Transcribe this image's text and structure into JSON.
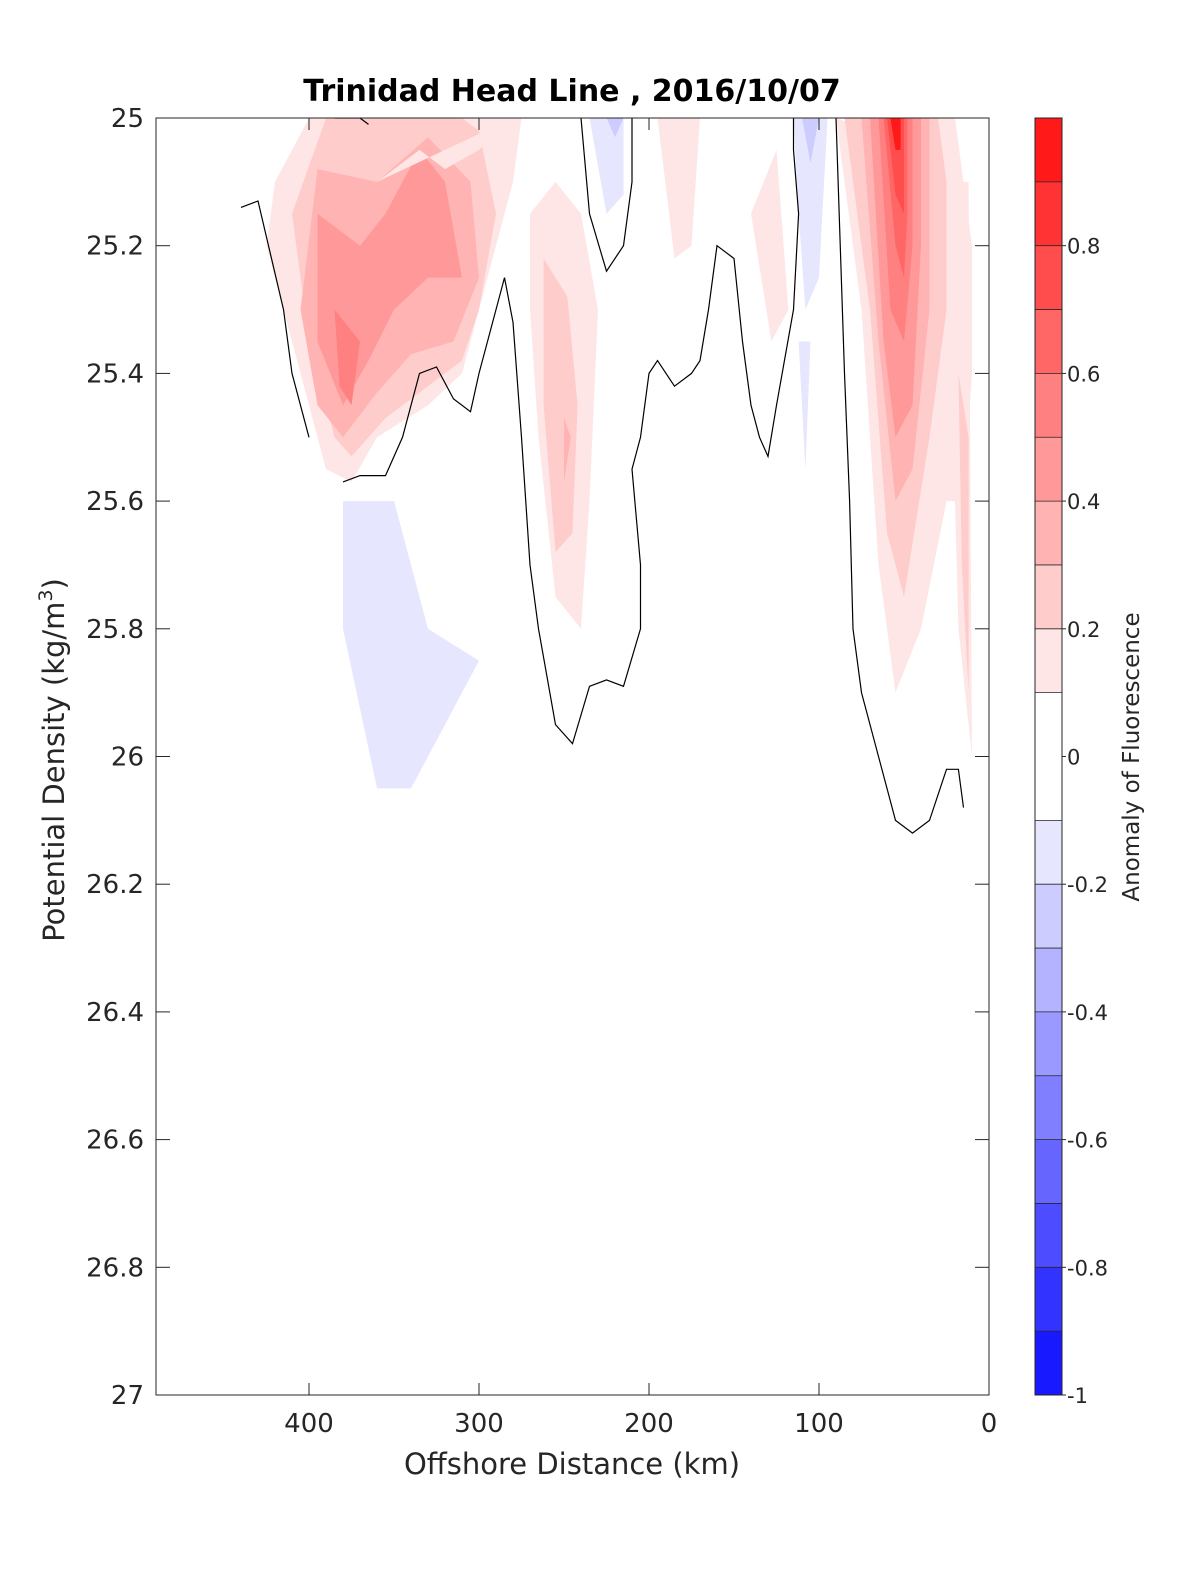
{
  "chart_data": {
    "type": "contour",
    "title": "Trinidad Head Line , 2016/10/07",
    "xlabel": "Offshore Distance (km)",
    "ylabel": "Potential Density (kg/m",
    "ylabel_sup": "3",
    "ylabel_close": ")",
    "xlim": [
      490,
      0
    ],
    "ylim": [
      25,
      27
    ],
    "y_reversed": true,
    "x_reversed": true,
    "xticks": [
      400,
      300,
      200,
      100,
      0
    ],
    "xtick_labels": [
      "400",
      "300",
      "200",
      "100",
      "0"
    ],
    "yticks": [
      25,
      25.2,
      25.4,
      25.6,
      25.8,
      26,
      26.2,
      26.4,
      26.6,
      26.8,
      27
    ],
    "ytick_labels": [
      "25",
      "25.2",
      "25.4",
      "25.6",
      "25.8",
      "26",
      "26.2",
      "26.4",
      "26.6",
      "26.8",
      "27"
    ],
    "colorbar": {
      "label": "Anomaly of Fluorescence",
      "range": [
        -1,
        1
      ],
      "levels": [
        -1,
        -0.9,
        -0.8,
        -0.7,
        -0.6,
        -0.5,
        -0.4,
        -0.3,
        -0.2,
        -0.1,
        0.1,
        0.2,
        0.3,
        0.4,
        0.5,
        0.6,
        0.7,
        0.8,
        0.9,
        1
      ],
      "ticks": [
        -1,
        -0.8,
        -0.6,
        -0.4,
        -0.2,
        0,
        0.2,
        0.4,
        0.6,
        0.8
      ],
      "tick_labels": [
        "-1",
        "-0.8",
        "-0.6",
        "-0.4",
        "-0.2",
        "0",
        "0.2",
        "0.4",
        "0.6",
        "0.8"
      ],
      "colormap": "blue-white-red",
      "low_color": "#0000ff",
      "high_color": "#ff0000"
    },
    "regions": [
      {
        "value": 0.1,
        "points": [
          [
            400,
            25
          ],
          [
            420,
            25.1
          ],
          [
            425,
            25.2
          ],
          [
            410,
            25.35
          ],
          [
            395,
            25.5
          ],
          [
            390,
            25.55
          ],
          [
            375,
            25.57
          ],
          [
            360,
            25.5
          ],
          [
            330,
            25.45
          ],
          [
            310,
            25.4
          ],
          [
            305,
            25.35
          ],
          [
            290,
            25.2
          ],
          [
            280,
            25.1
          ],
          [
            275,
            25
          ]
        ]
      },
      {
        "value": 0.2,
        "points": [
          [
            390,
            25
          ],
          [
            410,
            25.15
          ],
          [
            400,
            25.35
          ],
          [
            385,
            25.5
          ],
          [
            375,
            25.53
          ],
          [
            355,
            25.47
          ],
          [
            330,
            25.42
          ],
          [
            310,
            25.38
          ],
          [
            300,
            25.3
          ],
          [
            290,
            25.15
          ],
          [
            300,
            25.02
          ],
          [
            310,
            25
          ]
        ]
      },
      {
        "value": 0.3,
        "points": [
          [
            395,
            25.08
          ],
          [
            405,
            25.3
          ],
          [
            395,
            25.45
          ],
          [
            380,
            25.5
          ],
          [
            360,
            25.43
          ],
          [
            340,
            25.37
          ],
          [
            315,
            25.35
          ],
          [
            300,
            25.25
          ],
          [
            305,
            25.1
          ],
          [
            330,
            25.03
          ],
          [
            360,
            25.1
          ]
        ]
      },
      {
        "value": 0.4,
        "points": [
          [
            395,
            25.15
          ],
          [
            395,
            25.35
          ],
          [
            380,
            25.45
          ],
          [
            365,
            25.38
          ],
          [
            350,
            25.3
          ],
          [
            330,
            25.25
          ],
          [
            310,
            25.25
          ],
          [
            320,
            25.1
          ],
          [
            335,
            25.05
          ],
          [
            355,
            25.15
          ],
          [
            370,
            25.2
          ]
        ]
      },
      {
        "value": 0.5,
        "points": [
          [
            385,
            25.3
          ],
          [
            382,
            25.42
          ],
          [
            375,
            25.45
          ],
          [
            370,
            25.35
          ]
        ]
      },
      {
        "value": 0.1,
        "points": [
          [
            360,
            25.1
          ],
          [
            335,
            25.05
          ],
          [
            320,
            25.08
          ],
          [
            300,
            25.05
          ],
          [
            290,
            25.02
          ],
          [
            280,
            25
          ]
        ]
      },
      {
        "value": 0.1,
        "points": [
          [
            270,
            25.15
          ],
          [
            255,
            25.1
          ],
          [
            240,
            25.15
          ],
          [
            230,
            25.3
          ],
          [
            235,
            25.6
          ],
          [
            240,
            25.8
          ],
          [
            255,
            25.75
          ],
          [
            265,
            25.5
          ],
          [
            270,
            25.3
          ]
        ]
      },
      {
        "value": 0.2,
        "points": [
          [
            262,
            25.22
          ],
          [
            248,
            25.28
          ],
          [
            242,
            25.45
          ],
          [
            245,
            25.65
          ],
          [
            255,
            25.68
          ],
          [
            262,
            25.45
          ]
        ]
      },
      {
        "value": 0.3,
        "points": [
          [
            250,
            25.47
          ],
          [
            246,
            25.5
          ],
          [
            250,
            25.57
          ]
        ]
      },
      {
        "value": 0.1,
        "points": [
          [
            195,
            25
          ],
          [
            170,
            25
          ],
          [
            175,
            25.2
          ],
          [
            185,
            25.22
          ]
        ]
      },
      {
        "value": 0.1,
        "points": [
          [
            140,
            25.15
          ],
          [
            125,
            25.05
          ],
          [
            118,
            25.3
          ],
          [
            128,
            25.35
          ]
        ]
      },
      {
        "value": -0.1,
        "points": [
          [
            235,
            25
          ],
          [
            215,
            25
          ],
          [
            215,
            25.12
          ],
          [
            225,
            25.15
          ]
        ]
      },
      {
        "value": -0.2,
        "points": [
          [
            225,
            25
          ],
          [
            215,
            25
          ],
          [
            220,
            25.03
          ]
        ]
      },
      {
        "value": -0.1,
        "points": [
          [
            115,
            25
          ],
          [
            95,
            25
          ],
          [
            100,
            25.25
          ],
          [
            108,
            25.3
          ],
          [
            112,
            25.15
          ]
        ]
      },
      {
        "value": -0.2,
        "points": [
          [
            110,
            25
          ],
          [
            100,
            25
          ],
          [
            105,
            25.07
          ]
        ]
      },
      {
        "value": -0.1,
        "points": [
          [
            112,
            25.35
          ],
          [
            105,
            25.35
          ],
          [
            108,
            25.55
          ]
        ]
      },
      {
        "value": -0.1,
        "points": [
          [
            380,
            25.6
          ],
          [
            350,
            25.6
          ],
          [
            330,
            25.8
          ],
          [
            300,
            25.85
          ],
          [
            320,
            25.95
          ],
          [
            330,
            26
          ],
          [
            340,
            26.05
          ],
          [
            360,
            26.05
          ],
          [
            380,
            25.8
          ]
        ]
      },
      {
        "value": 0.1,
        "points": [
          [
            90,
            25
          ],
          [
            75,
            25.3
          ],
          [
            65,
            25.7
          ],
          [
            55,
            25.9
          ],
          [
            40,
            25.8
          ],
          [
            25,
            25.6
          ],
          [
            15,
            25.6
          ],
          [
            10,
            25.4
          ],
          [
            10,
            25.2
          ],
          [
            20,
            25
          ],
          [
            30,
            25
          ],
          [
            40,
            25.05
          ]
        ]
      },
      {
        "value": 0.1,
        "points": [
          [
            25,
            25.1
          ],
          [
            12,
            25.1
          ],
          [
            10,
            26
          ],
          [
            18,
            25.8
          ]
        ]
      },
      {
        "value": 0.2,
        "points": [
          [
            85,
            25
          ],
          [
            70,
            25.3
          ],
          [
            60,
            25.65
          ],
          [
            50,
            25.75
          ],
          [
            35,
            25.5
          ],
          [
            25,
            25.3
          ],
          [
            25,
            25.1
          ],
          [
            30,
            25
          ]
        ]
      },
      {
        "value": 0.3,
        "points": [
          [
            75,
            25
          ],
          [
            65,
            25.35
          ],
          [
            55,
            25.6
          ],
          [
            45,
            25.55
          ],
          [
            35,
            25.3
          ],
          [
            35,
            25
          ]
        ]
      },
      {
        "value": 0.4,
        "points": [
          [
            70,
            25
          ],
          [
            62,
            25.35
          ],
          [
            55,
            25.5
          ],
          [
            45,
            25.45
          ],
          [
            40,
            25.2
          ],
          [
            40,
            25
          ]
        ]
      },
      {
        "value": 0.5,
        "points": [
          [
            65,
            25
          ],
          [
            58,
            25.3
          ],
          [
            50,
            25.35
          ],
          [
            45,
            25.2
          ],
          [
            45,
            25
          ]
        ]
      },
      {
        "value": 0.6,
        "points": [
          [
            62,
            25
          ],
          [
            55,
            25.2
          ],
          [
            50,
            25.25
          ],
          [
            48,
            25.15
          ],
          [
            48,
            25
          ]
        ]
      },
      {
        "value": 0.7,
        "points": [
          [
            60,
            25
          ],
          [
            55,
            25.12
          ],
          [
            50,
            25.15
          ],
          [
            50,
            25
          ]
        ]
      },
      {
        "value": 0.9,
        "points": [
          [
            58,
            25
          ],
          [
            55,
            25.05
          ],
          [
            52,
            25.05
          ],
          [
            52,
            25
          ]
        ]
      },
      {
        "value": 0.2,
        "points": [
          [
            18,
            25.4
          ],
          [
            12,
            25.5
          ],
          [
            12,
            25.9
          ],
          [
            16,
            25.7
          ]
        ]
      }
    ],
    "zero_contours": [
      [
        [
          440,
          25.14
        ],
        [
          430,
          25.13
        ],
        [
          415,
          25.3
        ],
        [
          410,
          25.4
        ],
        [
          400,
          25.5
        ]
      ],
      [
        [
          380,
          25.57
        ],
        [
          370,
          25.56
        ],
        [
          355,
          25.56
        ],
        [
          345,
          25.5
        ],
        [
          335,
          25.4
        ],
        [
          325,
          25.39
        ],
        [
          315,
          25.44
        ],
        [
          305,
          25.46
        ],
        [
          300,
          25.4
        ],
        [
          290,
          25.3
        ],
        [
          285,
          25.25
        ],
        [
          280,
          25.32
        ],
        [
          275,
          25.5
        ],
        [
          270,
          25.7
        ],
        [
          265,
          25.8
        ],
        [
          255,
          25.95
        ],
        [
          245,
          25.98
        ],
        [
          235,
          25.89
        ],
        [
          225,
          25.88
        ],
        [
          215,
          25.89
        ],
        [
          205,
          25.8
        ],
        [
          205,
          25.7
        ],
        [
          210,
          25.55
        ],
        [
          205,
          25.5
        ],
        [
          200,
          25.4
        ],
        [
          195,
          25.38
        ],
        [
          185,
          25.42
        ],
        [
          175,
          25.4
        ],
        [
          170,
          25.38
        ],
        [
          165,
          25.3
        ],
        [
          160,
          25.2
        ],
        [
          150,
          25.22
        ],
        [
          145,
          25.35
        ],
        [
          140,
          25.45
        ],
        [
          135,
          25.5
        ],
        [
          130,
          25.53
        ],
        [
          125,
          25.45
        ],
        [
          115,
          25.3
        ],
        [
          112,
          25.15
        ],
        [
          115,
          25.05
        ],
        [
          115,
          25
        ]
      ],
      [
        [
          240,
          25
        ],
        [
          235,
          25.15
        ],
        [
          225,
          25.24
        ],
        [
          215,
          25.2
        ],
        [
          210,
          25.1
        ],
        [
          210,
          25
        ]
      ],
      [
        [
          90,
          25
        ],
        [
          85,
          25.4
        ],
        [
          82,
          25.6
        ],
        [
          80,
          25.8
        ],
        [
          75,
          25.9
        ],
        [
          65,
          26.0
        ],
        [
          55,
          26.1
        ],
        [
          45,
          26.12
        ],
        [
          35,
          26.1
        ],
        [
          25,
          26.02
        ],
        [
          18,
          26.02
        ],
        [
          15,
          26.08
        ]
      ],
      [
        [
          385,
          25
        ],
        [
          370,
          25
        ],
        [
          365,
          25.01
        ]
      ]
    ]
  }
}
